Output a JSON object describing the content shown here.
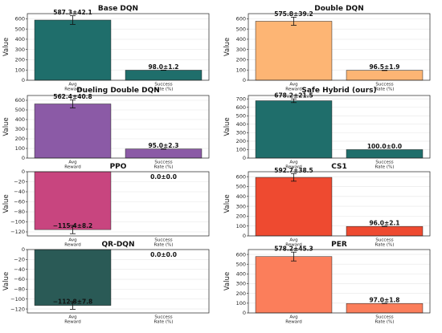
{
  "chart_data": [
    {
      "type": "bar",
      "title": "Base DQN",
      "ylabel": "Value",
      "categories": [
        "Avg\nReward",
        "Success\nRate (%)"
      ],
      "values": [
        587.3,
        98.0
      ],
      "errors": [
        42.1,
        1.2
      ],
      "labels": [
        "587.3±42.1",
        "98.0±1.2"
      ],
      "ylim": [
        0,
        650
      ],
      "yticks": [
        0,
        100,
        200,
        300,
        400,
        500,
        600
      ],
      "color": "#1f6e6b"
    },
    {
      "type": "bar",
      "title": "Double DQN",
      "ylabel": "Value",
      "categories": [
        "Avg\nReward",
        "Success\nRate (%)"
      ],
      "values": [
        575.8,
        96.5
      ],
      "errors": [
        39.2,
        1.9
      ],
      "labels": [
        "575.8±39.2",
        "96.5±1.9"
      ],
      "ylim": [
        0,
        650
      ],
      "yticks": [
        0,
        100,
        200,
        300,
        400,
        500,
        600
      ],
      "color": "#fdb574"
    },
    {
      "type": "bar",
      "title": "Dueling Double DQN",
      "ylabel": "Value",
      "categories": [
        "Avg\nReward",
        "Success\nRate (%)"
      ],
      "values": [
        562.4,
        95.0
      ],
      "errors": [
        40.8,
        2.3
      ],
      "labels": [
        "562.4±40.8",
        "95.0±2.3"
      ],
      "ylim": [
        0,
        650
      ],
      "yticks": [
        0,
        100,
        200,
        300,
        400,
        500,
        600
      ],
      "color": "#8b5aa6"
    },
    {
      "type": "bar",
      "title": "Safe Hybrid (ours)",
      "ylabel": "Value",
      "categories": [
        "Avg\nReward",
        "Success\nRate (%)"
      ],
      "values": [
        678.2,
        100.0
      ],
      "errors": [
        21.5,
        0.0
      ],
      "labels": [
        "678.2±21.5",
        "100.0±0.0"
      ],
      "ylim": [
        0,
        740
      ],
      "yticks": [
        0,
        100,
        200,
        300,
        400,
        500,
        600,
        700
      ],
      "color": "#1f6e6b"
    },
    {
      "type": "bar",
      "title": "PPO",
      "ylabel": "Value",
      "categories": [
        "Avg\nReward",
        "Success\nRate (%)"
      ],
      "values": [
        -115.4,
        0.0
      ],
      "errors": [
        8.2,
        0.0
      ],
      "labels": [
        "−115.4±8.2",
        "0.0±0.0"
      ],
      "ylim": [
        -128,
        0
      ],
      "yticks": [
        0,
        -20,
        -40,
        -60,
        -80,
        -100,
        -120
      ],
      "color": "#c8457f"
    },
    {
      "type": "bar",
      "title": "CS1",
      "ylabel": "Value",
      "categories": [
        "Avg\nReward",
        "Success\nRate (%)"
      ],
      "values": [
        592.7,
        96.0
      ],
      "errors": [
        38.5,
        2.1
      ],
      "labels": [
        "592.7±38.5",
        "96.0±2.1"
      ],
      "ylim": [
        0,
        650
      ],
      "yticks": [
        0,
        100,
        200,
        300,
        400,
        500,
        600
      ],
      "color": "#ee4a30"
    },
    {
      "type": "bar",
      "title": "QR-DQN",
      "ylabel": "Value",
      "categories": [
        "Avg\nReward",
        "Success\nRate (%)"
      ],
      "values": [
        -112.8,
        0.0
      ],
      "errors": [
        7.8,
        0.0
      ],
      "labels": [
        "−112.8±7.8",
        "0.0±0.0"
      ],
      "ylim": [
        -128,
        0
      ],
      "yticks": [
        0,
        -20,
        -40,
        -60,
        -80,
        -100,
        -120
      ],
      "color": "#2a5a56"
    },
    {
      "type": "bar",
      "title": "PER",
      "ylabel": "Value",
      "categories": [
        "Avg\nReward",
        "Success\nRate (%)"
      ],
      "values": [
        578.2,
        97.0
      ],
      "errors": [
        45.3,
        1.8
      ],
      "labels": [
        "578.2±45.3",
        "97.0±1.8"
      ],
      "ylim": [
        0,
        650
      ],
      "yticks": [
        0,
        100,
        200,
        300,
        400,
        500,
        600
      ],
      "color": "#fb7e5b"
    }
  ]
}
